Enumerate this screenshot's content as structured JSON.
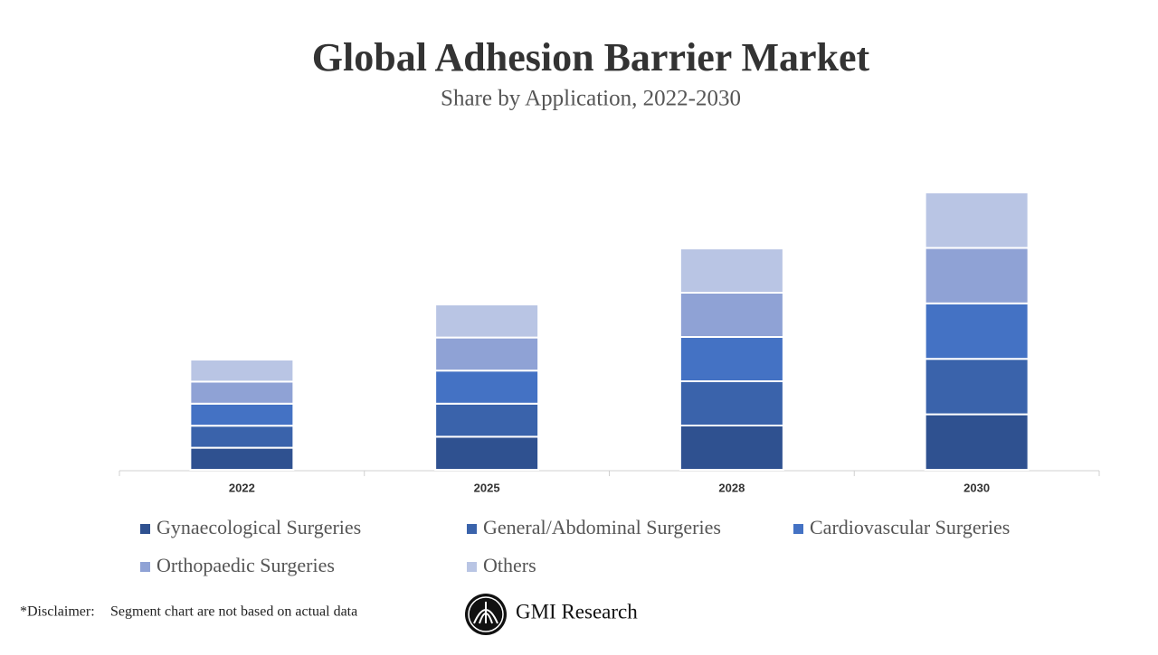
{
  "chart_data": {
    "type": "stacked-bar",
    "title": "Global Adhesion Barrier Market",
    "subtitle": "Share by Application, 2022-2030",
    "categories": [
      "2022",
      "2025",
      "2028",
      "2030"
    ],
    "series": [
      {
        "name": "Gynaecological Surgeries",
        "color": "#2f5190",
        "values": [
          24.4,
          36.6,
          49,
          61.4
        ]
      },
      {
        "name": "General/Abdominal Surgeries",
        "color": "#3a63ab",
        "values": [
          24.4,
          36.6,
          49,
          61.4
        ]
      },
      {
        "name": "Cardiovascular Surgeries",
        "color": "#4472c4",
        "values": [
          24.4,
          36.6,
          49,
          61.4
        ]
      },
      {
        "name": "Orthopaedic Surgeries",
        "color": "#8fa2d5",
        "values": [
          24.4,
          36.6,
          49,
          61.4
        ]
      },
      {
        "name": "Others",
        "color": "#b9c5e4",
        "values": [
          24.4,
          36.6,
          49,
          61.4
        ]
      }
    ]
  },
  "footer": {
    "disclaimer_label": "*Disclaimer:",
    "disclaimer_text": "Segment chart are not based on actual data",
    "brand": "GMI Research"
  }
}
